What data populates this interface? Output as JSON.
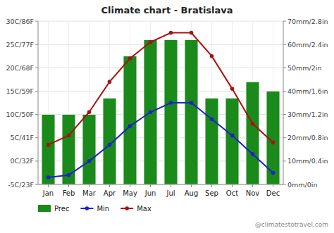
{
  "chart_data": {
    "type": "bar",
    "title": "Climate chart - Bratislava",
    "categories": [
      "Jan",
      "Feb",
      "Mar",
      "Apr",
      "May",
      "Jun",
      "Jul",
      "Aug",
      "Sep",
      "Oct",
      "Nov",
      "Dec"
    ],
    "series": [
      {
        "name": "Prec",
        "type": "bar",
        "axis": "y2",
        "color": "#1a8a1a",
        "values": [
          30,
          30,
          30,
          37,
          55,
          62,
          62,
          62,
          37,
          37,
          44,
          40
        ]
      },
      {
        "name": "Min",
        "type": "line",
        "color": "#2020cc",
        "marker": "circle",
        "line_style": "solid",
        "values": [
          -3.5,
          -3.0,
          0.0,
          3.5,
          7.5,
          10.5,
          12.5,
          12.5,
          9.0,
          5.5,
          1.5,
          -2.5
        ]
      },
      {
        "name": "Max",
        "type": "line",
        "color": "#aa1111",
        "marker": "circle",
        "line_style": "solid",
        "values": [
          3.5,
          5.5,
          10.5,
          17.0,
          22.0,
          25.5,
          27.5,
          27.5,
          22.5,
          15.5,
          8.0,
          4.0
        ]
      }
    ],
    "ylim": [
      -5,
      30
    ],
    "yticks": [
      {
        "value": -5,
        "label": "‑5C/23F"
      },
      {
        "value": 0,
        "label": "0C/32F"
      },
      {
        "value": 5,
        "label": "5C/41F"
      },
      {
        "value": 10,
        "label": "10C/50F"
      },
      {
        "value": 15,
        "label": "15C/59F"
      },
      {
        "value": 20,
        "label": "20C/68F"
      },
      {
        "value": 25,
        "label": "25C/77F"
      },
      {
        "value": 30,
        "label": "30C/86F"
      }
    ],
    "y2lim": [
      0,
      70
    ],
    "y2ticks": [
      {
        "value": 0,
        "label": "0mm/0in"
      },
      {
        "value": 10,
        "label": "10mm/0.4in"
      },
      {
        "value": 20,
        "label": "20mm/0.8in"
      },
      {
        "value": 30,
        "label": "30mm/1.2in"
      },
      {
        "value": 40,
        "label": "40mm/1.6in"
      },
      {
        "value": 50,
        "label": "50mm/2in"
      },
      {
        "value": 60,
        "label": "60mm/2.4in"
      },
      {
        "value": 70,
        "label": "70mm/2.8in"
      }
    ],
    "grid": true,
    "legend": "bottom",
    "annotations": [
      "@climatestotravel.com"
    ]
  }
}
